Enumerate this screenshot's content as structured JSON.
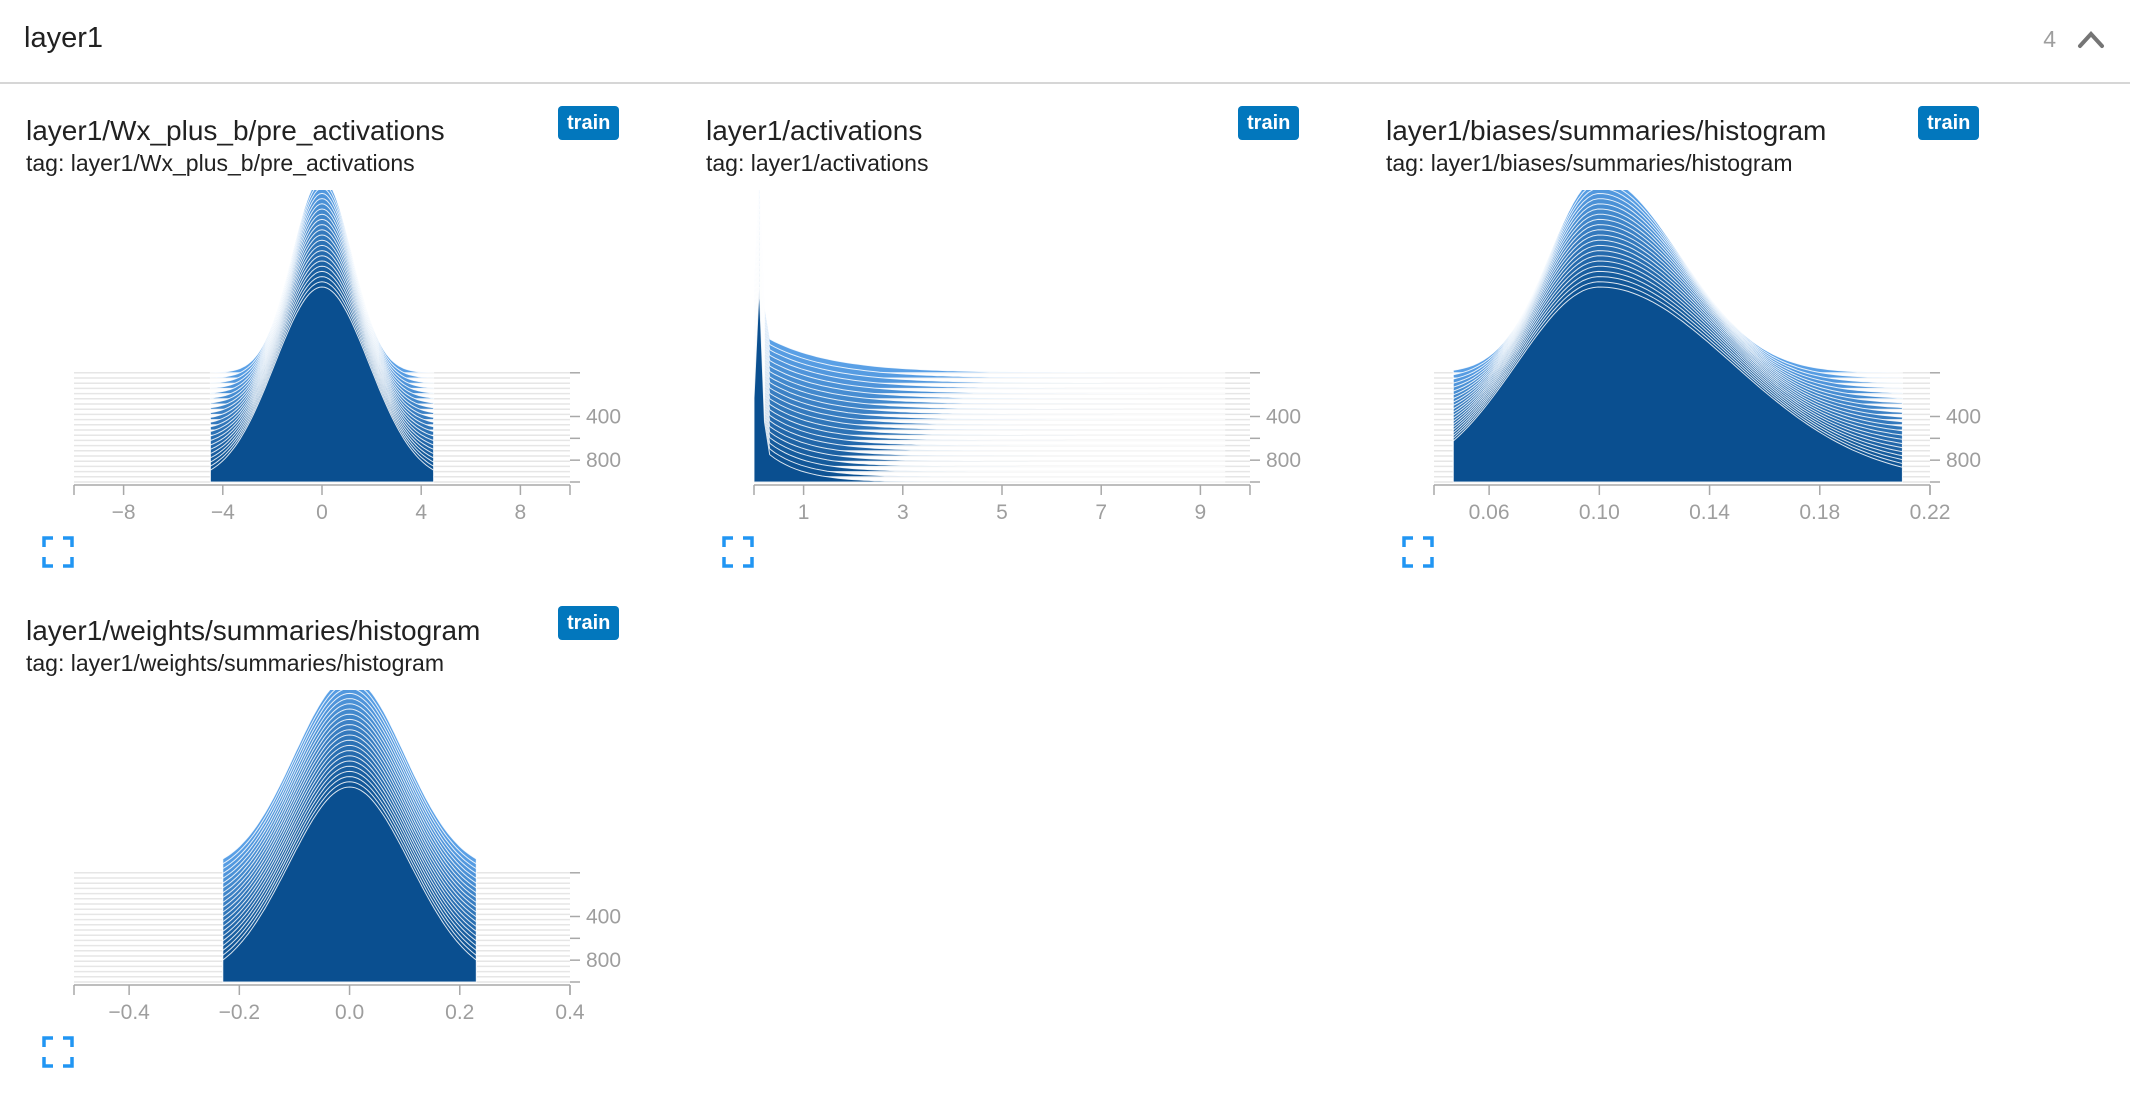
{
  "pane": {
    "title": "layer1",
    "count": "4",
    "collapse_icon": "chevron-up-icon"
  },
  "colors": {
    "front": "#0a4f90",
    "back": "#5aa0e6",
    "stroke": "#ffffff",
    "badge": "#0277bd",
    "expand": "#2196f3",
    "axis": "#a8a8a8"
  },
  "cards": [
    {
      "title": "layer1/Wx_plus_b/pre_activations",
      "tag": "tag: layer1/Wx_plus_b/pre_activations",
      "run": "train",
      "expand_icon": "fullscreen-icon"
    },
    {
      "title": "layer1/activations",
      "tag": "tag: layer1/activations",
      "run": "train",
      "expand_icon": "fullscreen-icon"
    },
    {
      "title": "layer1/biases/summaries/histogram",
      "tag": "tag: layer1/biases/summaries/histogram",
      "run": "train",
      "expand_icon": "fullscreen-icon"
    },
    {
      "title": "layer1/weights/summaries/histogram",
      "tag": "tag: layer1/weights/summaries/histogram",
      "run": "train",
      "expand_icon": "fullscreen-icon"
    }
  ],
  "chart_data": [
    {
      "type": "area",
      "style": "histogram-offset",
      "xlim": [
        -10,
        10
      ],
      "xticks": [
        -8,
        -4,
        0,
        4,
        8
      ],
      "xtick_labels": [
        "−8",
        "−4",
        "0",
        "4",
        "8"
      ],
      "ylim": [
        0,
        1000
      ],
      "yticks": [
        400,
        800
      ],
      "ytick_labels": [
        "400",
        "800"
      ],
      "distribution": {
        "shape": "gaussian",
        "center": 0,
        "width_front": 1.9,
        "width_back": 1.2,
        "min_x": -4.5,
        "max_x": 4.5
      }
    },
    {
      "type": "area",
      "style": "histogram-offset",
      "xlim": [
        0,
        10
      ],
      "xticks": [
        1,
        3,
        5,
        7,
        9
      ],
      "xtick_labels": [
        "1",
        "3",
        "5",
        "7",
        "9"
      ],
      "ylim": [
        0,
        1000
      ],
      "yticks": [
        400,
        800
      ],
      "ytick_labels": [
        "400",
        "800"
      ],
      "distribution": {
        "shape": "spike-decay",
        "spike_x": 0.1,
        "decay": 1.0,
        "min_x": 0,
        "max_x": 9.5
      }
    },
    {
      "type": "area",
      "style": "histogram-offset",
      "xlim": [
        0.04,
        0.22
      ],
      "xticks": [
        0.06,
        0.1,
        0.14,
        0.18,
        0.22
      ],
      "xtick_labels": [
        "0.06",
        "0.10",
        "0.14",
        "0.18",
        "0.22"
      ],
      "ylim": [
        0,
        1000
      ],
      "yticks": [
        400,
        800
      ],
      "ytick_labels": [
        "400",
        "800"
      ],
      "distribution": {
        "shape": "skewed",
        "center": 0.1,
        "width_front": 0.03,
        "width_back": 0.018,
        "min_x": 0.047,
        "max_x": 0.21
      }
    },
    {
      "type": "area",
      "style": "histogram-offset",
      "xlim": [
        -0.5,
        0.4
      ],
      "xticks": [
        -0.4,
        -0.2,
        0.0,
        0.2,
        0.4
      ],
      "xtick_labels": [
        "−0.4",
        "−0.2",
        "0.0",
        "0.2",
        "0.4"
      ],
      "ylim": [
        0,
        1000
      ],
      "yticks": [
        400,
        800
      ],
      "ytick_labels": [
        "400",
        "800"
      ],
      "distribution": {
        "shape": "gaussian",
        "center": 0.0,
        "width_front": 0.11,
        "width_back": 0.1,
        "min_x": -0.23,
        "max_x": 0.23
      }
    }
  ]
}
